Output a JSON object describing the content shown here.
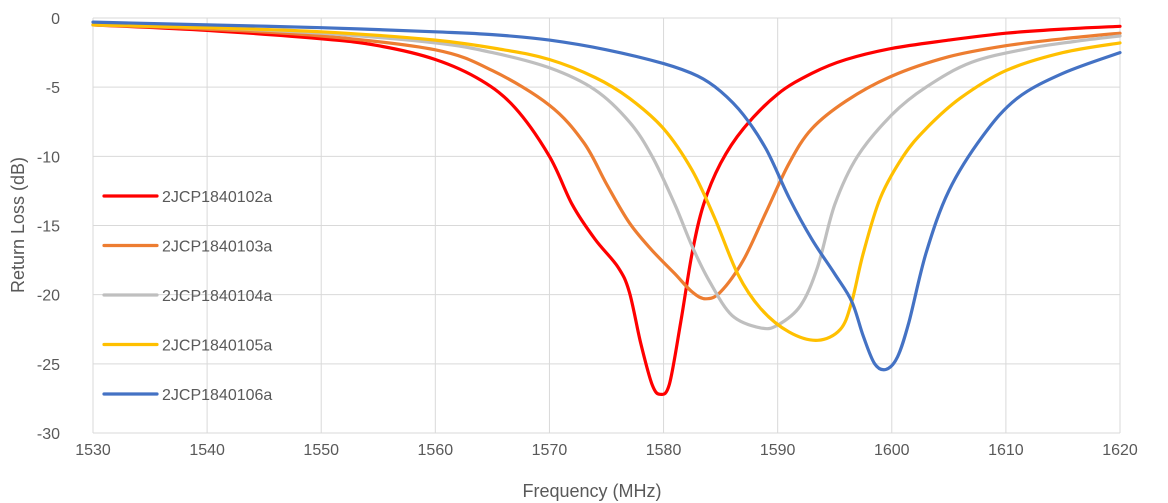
{
  "chart_data": {
    "type": "line",
    "xlabel": "Frequency (MHz)",
    "ylabel": "Return Loss (dB)",
    "xlim": [
      1530,
      1620
    ],
    "ylim": [
      -30,
      0
    ],
    "x_ticks": [
      1530,
      1540,
      1550,
      1560,
      1570,
      1580,
      1590,
      1600,
      1610,
      1620
    ],
    "y_ticks": [
      0,
      -5,
      -10,
      -15,
      -20,
      -25,
      -30
    ],
    "grid": "vertical-and-horizontal",
    "legend_position": "left",
    "series": [
      {
        "name": "2JCP1840102a",
        "color": "#ff0000",
        "points": [
          [
            1530,
            -0.5
          ],
          [
            1540,
            -0.9
          ],
          [
            1550,
            -1.5
          ],
          [
            1555,
            -2.0
          ],
          [
            1560,
            -3.0
          ],
          [
            1564,
            -4.5
          ],
          [
            1567,
            -6.5
          ],
          [
            1570,
            -10.0
          ],
          [
            1572,
            -13.5
          ],
          [
            1574,
            -16.0
          ],
          [
            1576,
            -18.0
          ],
          [
            1577,
            -19.8
          ],
          [
            1578,
            -23.5
          ],
          [
            1579,
            -26.5
          ],
          [
            1579.7,
            -27.2
          ],
          [
            1580.5,
            -26.5
          ],
          [
            1581.5,
            -22.0
          ],
          [
            1582.5,
            -17.0
          ],
          [
            1583.5,
            -13.5
          ],
          [
            1585,
            -10.5
          ],
          [
            1587,
            -8.0
          ],
          [
            1590,
            -5.5
          ],
          [
            1593,
            -4.0
          ],
          [
            1596,
            -3.0
          ],
          [
            1600,
            -2.2
          ],
          [
            1605,
            -1.6
          ],
          [
            1610,
            -1.1
          ],
          [
            1615,
            -0.8
          ],
          [
            1620,
            -0.6
          ]
        ]
      },
      {
        "name": "2JCP1840103a",
        "color": "#ed7d31",
        "points": [
          [
            1530,
            -0.5
          ],
          [
            1540,
            -0.8
          ],
          [
            1550,
            -1.3
          ],
          [
            1560,
            -2.3
          ],
          [
            1565,
            -3.8
          ],
          [
            1570,
            -6.3
          ],
          [
            1573,
            -9.0
          ],
          [
            1575,
            -12.0
          ],
          [
            1577,
            -14.8
          ],
          [
            1579,
            -16.8
          ],
          [
            1581,
            -18.5
          ],
          [
            1582.5,
            -19.8
          ],
          [
            1583.7,
            -20.3
          ],
          [
            1585,
            -19.8
          ],
          [
            1587,
            -17.5
          ],
          [
            1589,
            -14.0
          ],
          [
            1591,
            -10.5
          ],
          [
            1593,
            -8.0
          ],
          [
            1596,
            -6.0
          ],
          [
            1600,
            -4.2
          ],
          [
            1605,
            -2.8
          ],
          [
            1610,
            -2.0
          ],
          [
            1615,
            -1.5
          ],
          [
            1620,
            -1.1
          ]
        ]
      },
      {
        "name": "2JCP1840104a",
        "color": "#bfbfbf",
        "points": [
          [
            1530,
            -0.5
          ],
          [
            1540,
            -0.7
          ],
          [
            1550,
            -1.1
          ],
          [
            1560,
            -1.8
          ],
          [
            1565,
            -2.5
          ],
          [
            1570,
            -3.6
          ],
          [
            1574,
            -5.2
          ],
          [
            1577,
            -7.5
          ],
          [
            1579,
            -10.0
          ],
          [
            1581,
            -13.5
          ],
          [
            1582.5,
            -16.5
          ],
          [
            1584,
            -19.0
          ],
          [
            1586,
            -21.5
          ],
          [
            1588.5,
            -22.4
          ],
          [
            1590,
            -22.2
          ],
          [
            1592,
            -20.8
          ],
          [
            1593.5,
            -18.0
          ],
          [
            1595,
            -13.5
          ],
          [
            1597,
            -10.0
          ],
          [
            1600,
            -7.0
          ],
          [
            1603,
            -5.0
          ],
          [
            1607,
            -3.2
          ],
          [
            1612,
            -2.2
          ],
          [
            1616,
            -1.7
          ],
          [
            1620,
            -1.3
          ]
        ]
      },
      {
        "name": "2JCP1840105a",
        "color": "#ffc000",
        "points": [
          [
            1530,
            -0.5
          ],
          [
            1540,
            -0.7
          ],
          [
            1550,
            -1.0
          ],
          [
            1560,
            -1.6
          ],
          [
            1566,
            -2.3
          ],
          [
            1570,
            -3.0
          ],
          [
            1574,
            -4.3
          ],
          [
            1577,
            -5.8
          ],
          [
            1580,
            -8.0
          ],
          [
            1582.5,
            -11.0
          ],
          [
            1584.5,
            -14.5
          ],
          [
            1586.5,
            -18.5
          ],
          [
            1588.5,
            -21.0
          ],
          [
            1591,
            -22.7
          ],
          [
            1593.5,
            -23.3
          ],
          [
            1595.5,
            -22.5
          ],
          [
            1596.5,
            -20.5
          ],
          [
            1597.5,
            -17.0
          ],
          [
            1599,
            -13.0
          ],
          [
            1601,
            -10.0
          ],
          [
            1603,
            -8.0
          ],
          [
            1606,
            -5.8
          ],
          [
            1610,
            -3.8
          ],
          [
            1615,
            -2.5
          ],
          [
            1620,
            -1.8
          ]
        ]
      },
      {
        "name": "2JCP1840106a",
        "color": "#4472c4",
        "points": [
          [
            1530,
            -0.3
          ],
          [
            1540,
            -0.5
          ],
          [
            1550,
            -0.7
          ],
          [
            1560,
            -1.0
          ],
          [
            1565,
            -1.2
          ],
          [
            1570,
            -1.6
          ],
          [
            1575,
            -2.3
          ],
          [
            1580,
            -3.3
          ],
          [
            1583,
            -4.2
          ],
          [
            1585,
            -5.3
          ],
          [
            1587,
            -7.0
          ],
          [
            1589,
            -9.5
          ],
          [
            1591,
            -13.0
          ],
          [
            1593,
            -16.0
          ],
          [
            1595,
            -18.5
          ],
          [
            1596.5,
            -20.5
          ],
          [
            1597.5,
            -23.0
          ],
          [
            1598.5,
            -25.0
          ],
          [
            1599.5,
            -25.4
          ],
          [
            1600.5,
            -24.5
          ],
          [
            1601.5,
            -22.0
          ],
          [
            1603,
            -17.0
          ],
          [
            1605,
            -12.5
          ],
          [
            1608,
            -8.5
          ],
          [
            1611,
            -5.8
          ],
          [
            1615,
            -4.0
          ],
          [
            1620,
            -2.5
          ]
        ]
      }
    ]
  }
}
